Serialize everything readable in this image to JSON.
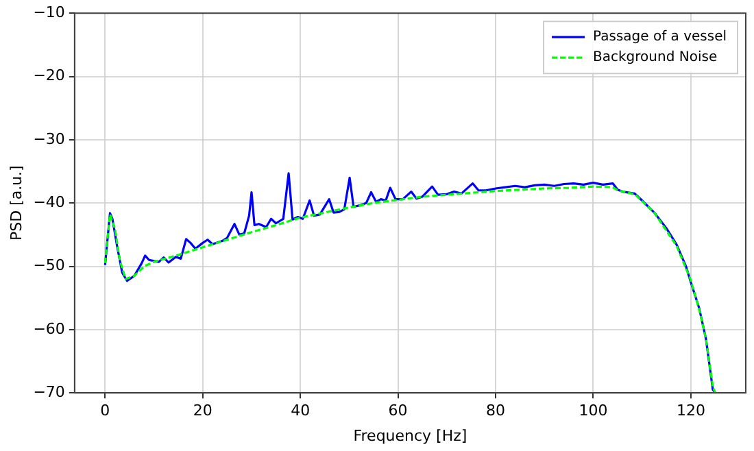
{
  "chart_data": {
    "type": "line",
    "xlabel": "Frequency [Hz]",
    "ylabel": "PSD [a.u.]",
    "xlim": [
      -6.25,
      131.25
    ],
    "ylim": [
      -70,
      -10
    ],
    "xticks": [
      0,
      20,
      40,
      60,
      80,
      100,
      120
    ],
    "yticks": [
      -70,
      -60,
      -50,
      -40,
      -30,
      -20,
      -10
    ],
    "grid": true,
    "legend": "top right",
    "marker": "none",
    "series": [
      {
        "name": "Passage of a vessel",
        "color": "#0000ff",
        "line_style": "solid",
        "x": [
          0,
          1,
          1.5,
          2.5,
          3.5,
          4.5,
          6,
          7.5,
          8.2,
          9,
          11,
          12,
          13,
          14.5,
          15.5,
          16.6,
          17.5,
          18.5,
          20,
          21,
          22,
          24,
          25,
          26.5,
          27.5,
          28.5,
          29.5,
          30,
          30.6,
          31.5,
          33,
          34,
          35,
          36.5,
          37.6,
          38.4,
          39.5,
          40.5,
          41.9,
          42.8,
          44,
          45.9,
          46.8,
          48,
          49,
          50.1,
          50.9,
          52,
          53.5,
          54.5,
          55.5,
          56.5,
          57.5,
          58.4,
          59.5,
          61,
          62.7,
          63.8,
          65,
          67,
          68.2,
          70,
          71.5,
          73,
          75.3,
          76.5,
          78,
          80,
          82,
          84,
          86,
          88,
          90,
          92,
          94,
          96,
          98,
          100,
          102,
          104,
          105,
          106,
          108.5,
          110,
          112.5,
          115,
          117.1,
          119,
          119.9,
          121.7,
          123.1,
          124.5,
          125
        ],
        "values": [
          -49.8,
          -41.6,
          -42.5,
          -47,
          -51,
          -52.3,
          -51.5,
          -49.5,
          -48.3,
          -49,
          -49.3,
          -48.6,
          -49.4,
          -48.5,
          -48.8,
          -45.7,
          -46.3,
          -47.2,
          -46.3,
          -45.8,
          -46.5,
          -46,
          -45.5,
          -43.3,
          -45,
          -44.8,
          -42,
          -38.3,
          -43.5,
          -43.3,
          -43.8,
          -42.5,
          -43.2,
          -42.5,
          -35.3,
          -42.6,
          -42.2,
          -42.5,
          -39.6,
          -42,
          -41.8,
          -39.4,
          -41.5,
          -41.4,
          -41,
          -36,
          -40.6,
          -40.4,
          -40,
          -38.3,
          -39.8,
          -39.4,
          -39.6,
          -37.6,
          -39.4,
          -39.4,
          -38.2,
          -39.3,
          -39,
          -37.4,
          -38.7,
          -38.6,
          -38.2,
          -38.5,
          -36.9,
          -38,
          -38,
          -37.7,
          -37.5,
          -37.3,
          -37.5,
          -37.2,
          -37.1,
          -37.3,
          -37,
          -36.9,
          -37.1,
          -36.8,
          -37.1,
          -36.9,
          -37.9,
          -38.2,
          -38.5,
          -39.6,
          -41.5,
          -44,
          -46.6,
          -50,
          -52.3,
          -56.6,
          -61.5,
          -69.5,
          -70
        ]
      },
      {
        "name": "Background Noise",
        "color": "#00ff00",
        "line_style": "dashed",
        "x": [
          0,
          1,
          2,
          3,
          4.2,
          6,
          8,
          10,
          15,
          20,
          25,
          30,
          35,
          40,
          45,
          50,
          55,
          60,
          65,
          70,
          75,
          80,
          85,
          90,
          95,
          100,
          104,
          105,
          108.5,
          112.5,
          117.1,
          119.9,
          121.7,
          123.1,
          124.5,
          125
        ],
        "values": [
          -49.5,
          -41.8,
          -44,
          -49,
          -52,
          -51.5,
          -50,
          -49.3,
          -48.2,
          -47,
          -45.8,
          -44.6,
          -43.5,
          -42.3,
          -41.5,
          -40.7,
          -40,
          -39.5,
          -39,
          -38.7,
          -38.4,
          -38.1,
          -37.9,
          -37.7,
          -37.6,
          -37.4,
          -37.5,
          -38,
          -38.6,
          -41.5,
          -46.8,
          -52,
          -56.8,
          -61.5,
          -69,
          -70
        ]
      }
    ]
  }
}
